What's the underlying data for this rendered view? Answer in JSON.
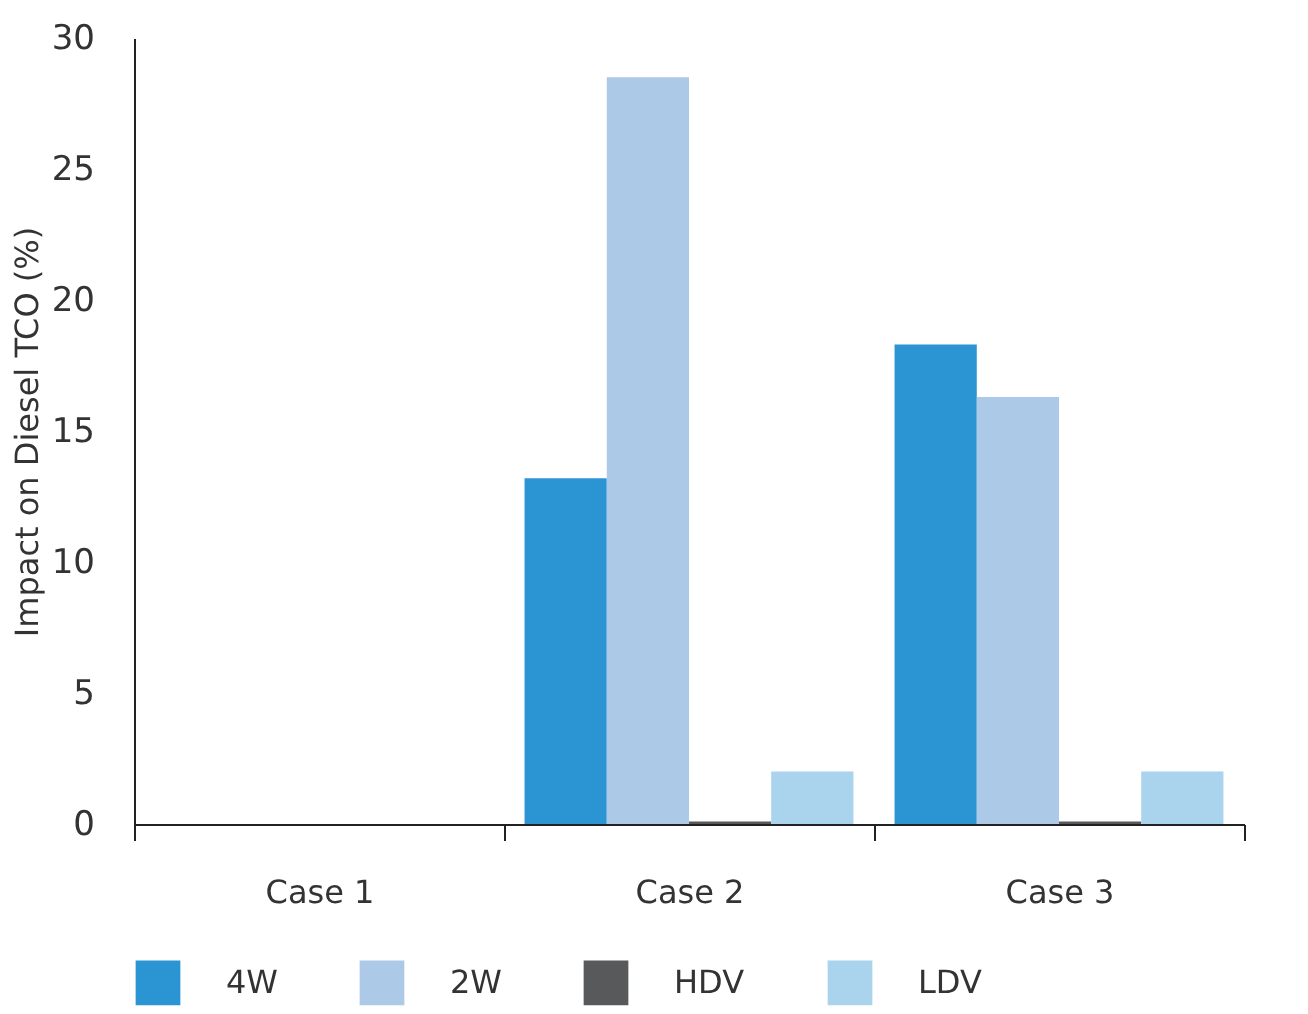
{
  "chart_data": {
    "type": "bar",
    "ylabel": "Impact on Diesel TCO (%)",
    "categories": [
      "Case 1",
      "Case 2",
      "Case 3"
    ],
    "series": [
      {
        "name": "4W",
        "color": "#2b95d3",
        "values": [
          0,
          13.2,
          18.3
        ]
      },
      {
        "name": "2W",
        "color": "#adc9e8",
        "values": [
          0,
          28.5,
          16.3
        ]
      },
      {
        "name": "HDV",
        "color": "#58595b",
        "values": [
          0,
          0.1,
          0.1
        ]
      },
      {
        "name": "LDV",
        "color": "#aad4ee",
        "values": [
          0,
          2.0,
          2.0
        ]
      }
    ],
    "ylim": [
      0,
      30
    ],
    "yticks": [
      0,
      5,
      10,
      15,
      20,
      25,
      30
    ],
    "grid": false,
    "legend": "bottom"
  }
}
